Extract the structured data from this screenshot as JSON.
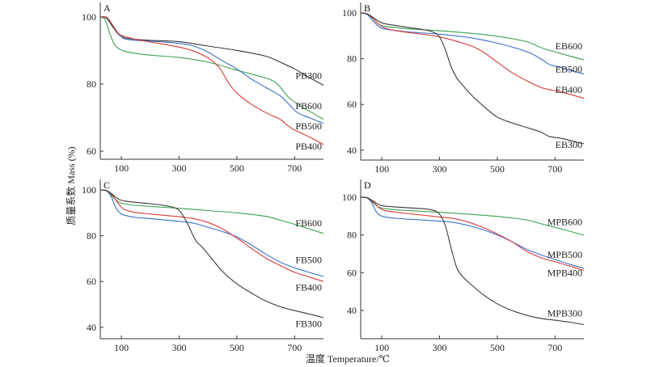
{
  "figure": {
    "ylabel": "质量系数 Mass (%)",
    "xlabel": "温度 Temperature/℃"
  },
  "chart_data": [
    {
      "type": "line",
      "panel": "A",
      "xlabel": "温度 Temperature/℃",
      "ylabel": "质量系数 Mass (%)",
      "xlim": [
        27,
        800
      ],
      "ylim": [
        57.6,
        104.3
      ],
      "xticks": [
        100,
        300,
        500,
        700
      ],
      "yticks": [
        60,
        80,
        100
      ],
      "grid": false,
      "series": [
        {
          "name": "PB300",
          "color": "#3a3a3a",
          "x": [
            30,
            50,
            70,
            90,
            110,
            150,
            200,
            300,
            400,
            500,
            600,
            650,
            700,
            750,
            800
          ],
          "y": [
            100,
            99.5,
            97,
            94.8,
            93.8,
            93.3,
            93.0,
            92.6,
            91.3,
            90.0,
            88.3,
            86.5,
            84.5,
            82.0,
            79.6
          ]
        },
        {
          "name": "PB600",
          "color": "#3aa050",
          "x": [
            30,
            45,
            60,
            75,
            90,
            110,
            150,
            200,
            300,
            400,
            500,
            600,
            640,
            680,
            720,
            760,
            800
          ],
          "y": [
            100,
            99,
            95,
            92.0,
            90.6,
            89.8,
            89.1,
            88.6,
            87.9,
            86.5,
            84.1,
            81.8,
            80.0,
            76.0,
            73.5,
            71.5,
            69.5
          ]
        },
        {
          "name": "PB500",
          "color": "#3a6fc8",
          "x": [
            30,
            50,
            70,
            90,
            110,
            150,
            200,
            300,
            350,
            400,
            450,
            500,
            550,
            600,
            650,
            680,
            710,
            750,
            800
          ],
          "y": [
            100,
            99.8,
            97.5,
            95.0,
            93.5,
            93.0,
            92.8,
            92.1,
            91.3,
            89.5,
            86.9,
            84.5,
            81.5,
            79.0,
            76.5,
            74.0,
            71.5,
            70.0,
            68.3
          ]
        },
        {
          "name": "PB400",
          "color": "#d83a3a",
          "x": [
            30,
            50,
            70,
            90,
            110,
            150,
            200,
            300,
            350,
            400,
            440,
            470,
            500,
            550,
            600,
            650,
            670,
            700,
            750,
            800
          ],
          "y": [
            100,
            99.8,
            97.5,
            95.0,
            94.2,
            93.3,
            92.5,
            91.0,
            89.8,
            87.8,
            84.8,
            80.5,
            77.3,
            74.0,
            71.5,
            69.5,
            68.0,
            66.3,
            64.3,
            62.0
          ]
        }
      ]
    },
    {
      "type": "line",
      "panel": "B",
      "xlabel": "温度 Temperature/℃",
      "ylabel": "质量系数 Mass (%)",
      "xlim": [
        27,
        800
      ],
      "ylim": [
        35.7,
        104.6
      ],
      "xticks": [
        100,
        300,
        500,
        700
      ],
      "yticks": [
        40,
        60,
        80,
        100
      ],
      "grid": false,
      "series": [
        {
          "name": "EB600",
          "color": "#3aa050",
          "x": [
            30,
            50,
            70,
            90,
            110,
            150,
            200,
            300,
            400,
            500,
            600,
            640,
            670,
            700,
            750,
            800
          ],
          "y": [
            100,
            99.5,
            97.5,
            95.0,
            94.2,
            93.6,
            93.0,
            92.2,
            91.2,
            89.8,
            87.5,
            85.5,
            84.0,
            83.0,
            81.2,
            79.5
          ]
        },
        {
          "name": "EB500",
          "color": "#3a6fc8",
          "x": [
            30,
            50,
            70,
            90,
            110,
            150,
            200,
            300,
            400,
            500,
            600,
            650,
            680,
            700,
            750,
            800
          ],
          "y": [
            100,
            99.3,
            96.5,
            94.0,
            93.0,
            92.3,
            91.6,
            90.7,
            89.3,
            86.8,
            83.2,
            80.0,
            77.5,
            76.8,
            75.0,
            73.3
          ]
        },
        {
          "name": "EB400",
          "color": "#d83a3a",
          "x": [
            30,
            50,
            70,
            90,
            110,
            150,
            200,
            300,
            400,
            450,
            500,
            550,
            600,
            650,
            680,
            720,
            800
          ],
          "y": [
            100,
            99.6,
            97.5,
            95.0,
            93.5,
            92.2,
            91.3,
            89.5,
            86.0,
            83.0,
            78.5,
            74.0,
            70.5,
            67.5,
            66.5,
            65.5,
            62.7
          ]
        },
        {
          "name": "EB300",
          "color": "#3a3a3a",
          "x": [
            30,
            50,
            70,
            90,
            110,
            150,
            200,
            250,
            280,
            300,
            320,
            340,
            360,
            380,
            400,
            450,
            500,
            550,
            600,
            650,
            680,
            720,
            800
          ],
          "y": [
            100,
            99.6,
            98.0,
            96.3,
            95.3,
            94.5,
            93.5,
            92.6,
            91.5,
            89.5,
            84.0,
            76.5,
            71.5,
            68.5,
            65.5,
            59.5,
            54.5,
            52.0,
            50.0,
            48.0,
            46.0,
            45.2,
            42.8
          ]
        }
      ]
    },
    {
      "type": "line",
      "panel": "C",
      "xlabel": "温度 Temperature/℃",
      "ylabel": "质量系数 Mass (%)",
      "xlim": [
        27,
        800
      ],
      "ylim": [
        35.0,
        104.6
      ],
      "xticks": [
        100,
        300,
        500,
        700
      ],
      "yticks": [
        40,
        60,
        80,
        100
      ],
      "grid": false,
      "series": [
        {
          "name": "FB600",
          "color": "#3aa050",
          "x": [
            30,
            50,
            70,
            90,
            110,
            150,
            200,
            300,
            400,
            500,
            600,
            650,
            700,
            750,
            800
          ],
          "y": [
            100,
            99.5,
            97,
            94.8,
            94.0,
            93.3,
            92.8,
            92.0,
            91.0,
            90.0,
            88.5,
            86.8,
            85.0,
            83.0,
            81.0
          ]
        },
        {
          "name": "FB500",
          "color": "#3a6fc8",
          "x": [
            30,
            50,
            65,
            80,
            95,
            110,
            150,
            200,
            300,
            350,
            400,
            450,
            500,
            550,
            600,
            650,
            700,
            750,
            800
          ],
          "y": [
            100,
            99.5,
            97,
            92.5,
            90.0,
            89.0,
            88.0,
            87.5,
            86.3,
            85.5,
            83.7,
            81.8,
            79.5,
            76.0,
            72.0,
            68.5,
            66.0,
            64.0,
            62.2
          ]
        },
        {
          "name": "FB400",
          "color": "#d83a3a",
          "x": [
            30,
            50,
            70,
            90,
            110,
            150,
            200,
            300,
            350,
            400,
            450,
            500,
            550,
            600,
            650,
            700,
            750,
            800
          ],
          "y": [
            100,
            99.7,
            97.5,
            94.0,
            91.5,
            90.2,
            89.5,
            88.3,
            87.5,
            85.8,
            83.0,
            79.0,
            74.5,
            70.3,
            67.0,
            64.0,
            62.0,
            60.0
          ]
        },
        {
          "name": "FB300",
          "color": "#3a3a3a",
          "x": [
            30,
            50,
            70,
            90,
            110,
            150,
            200,
            250,
            290,
            310,
            330,
            345,
            360,
            380,
            400,
            450,
            500,
            550,
            600,
            650,
            700,
            750,
            800
          ],
          "y": [
            100,
            99.7,
            98.0,
            96.0,
            95.2,
            94.6,
            94.0,
            93.2,
            92.0,
            89.5,
            85.0,
            81.0,
            77.5,
            75.0,
            72.0,
            64.5,
            59.0,
            55.0,
            51.5,
            49.0,
            47.3,
            45.8,
            44.2
          ]
        }
      ]
    },
    {
      "type": "line",
      "panel": "D",
      "xlabel": "温度 Temperature/℃",
      "ylabel": "质量系数 Mass (%)",
      "xlim": [
        27,
        800
      ],
      "ylim": [
        25.0,
        109.4
      ],
      "xticks": [
        100,
        300,
        500,
        700
      ],
      "yticks": [
        40,
        60,
        80,
        100
      ],
      "grid": false,
      "series": [
        {
          "name": "MPB600",
          "color": "#3aa050",
          "x": [
            30,
            50,
            70,
            90,
            110,
            150,
            200,
            300,
            400,
            500,
            600,
            650,
            700,
            750,
            800
          ],
          "y": [
            100,
            99.5,
            97,
            94.7,
            94.0,
            93.3,
            92.8,
            92.0,
            91.0,
            89.8,
            88.0,
            86.0,
            84.0,
            82.0,
            79.8
          ]
        },
        {
          "name": "MPB500",
          "color": "#3a6fc8",
          "x": [
            30,
            50,
            65,
            80,
            95,
            110,
            150,
            200,
            300,
            350,
            400,
            450,
            500,
            550,
            600,
            650,
            700,
            750,
            800
          ],
          "y": [
            100,
            99.5,
            97,
            92.5,
            90.3,
            89.5,
            88.8,
            88.3,
            87.3,
            86.6,
            85.0,
            82.8,
            80.0,
            76.5,
            72.5,
            69.5,
            67.0,
            64.5,
            62.3
          ]
        },
        {
          "name": "MPB400",
          "color": "#d83a3a",
          "x": [
            30,
            50,
            70,
            90,
            110,
            150,
            200,
            300,
            350,
            400,
            450,
            500,
            550,
            600,
            650,
            700,
            750,
            800
          ],
          "y": [
            100,
            99.7,
            97.5,
            94.5,
            93.0,
            92.0,
            91.2,
            89.5,
            88.7,
            86.8,
            84.0,
            80.5,
            76.5,
            71.5,
            68.0,
            65.8,
            63.5,
            61.2
          ]
        },
        {
          "name": "MPB300",
          "color": "#3a3a3a",
          "x": [
            30,
            50,
            70,
            90,
            110,
            150,
            200,
            250,
            280,
            300,
            320,
            340,
            360,
            380,
            400,
            450,
            500,
            550,
            600,
            650,
            700,
            750,
            800
          ],
          "y": [
            100,
            99.7,
            98.0,
            96.0,
            95.3,
            94.8,
            94.3,
            93.8,
            93.0,
            91.0,
            85.0,
            73.0,
            62.5,
            58.0,
            55.0,
            48.5,
            43.5,
            40.0,
            37.5,
            35.8,
            34.8,
            33.8,
            32.5
          ]
        }
      ]
    }
  ]
}
